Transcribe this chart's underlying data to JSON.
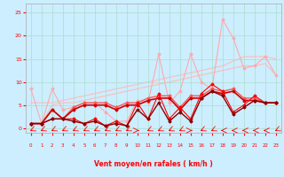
{
  "x": [
    0,
    1,
    2,
    3,
    4,
    5,
    6,
    7,
    8,
    9,
    10,
    11,
    12,
    13,
    14,
    15,
    16,
    17,
    18,
    19,
    20,
    21,
    22,
    23
  ],
  "line_upper1": [
    1.0,
    1.0,
    5.0,
    5.5,
    5.5,
    6.0,
    6.5,
    7.0,
    7.5,
    8.0,
    8.5,
    9.0,
    9.5,
    10.0,
    10.5,
    11.0,
    11.5,
    12.0,
    12.5,
    13.0,
    13.5,
    13.5,
    14.0,
    11.5
  ],
  "line_upper2": [
    5.5,
    5.5,
    5.5,
    6.0,
    6.5,
    7.0,
    7.5,
    8.0,
    8.5,
    9.0,
    9.5,
    10.0,
    10.5,
    11.0,
    11.5,
    12.0,
    12.5,
    13.0,
    13.5,
    14.5,
    15.5,
    15.5,
    15.5,
    15.0
  ],
  "line_spike": [
    8.5,
    1.0,
    8.5,
    4.0,
    4.5,
    5.5,
    5.5,
    3.5,
    1.5,
    1.5,
    6.0,
    5.5,
    16.0,
    5.5,
    8.0,
    16.0,
    10.0,
    8.5,
    23.5,
    19.5,
    13.0,
    13.5,
    15.5,
    11.5
  ],
  "line_mid1": [
    1.0,
    1.0,
    4.0,
    2.0,
    4.5,
    5.5,
    5.5,
    5.5,
    4.5,
    5.5,
    5.5,
    6.5,
    7.0,
    7.0,
    4.5,
    7.0,
    7.0,
    8.5,
    8.0,
    8.5,
    6.5,
    6.5,
    5.5,
    5.5
  ],
  "line_mid2": [
    1.0,
    1.0,
    4.0,
    2.0,
    4.0,
    5.0,
    5.0,
    5.0,
    4.0,
    5.0,
    5.0,
    6.0,
    6.5,
    6.5,
    4.0,
    6.5,
    6.5,
    8.0,
    7.5,
    8.0,
    6.0,
    6.0,
    5.5,
    5.5
  ],
  "line_low1": [
    1.0,
    1.0,
    2.0,
    2.0,
    2.0,
    1.0,
    2.0,
    0.5,
    1.5,
    0.5,
    5.5,
    2.0,
    7.5,
    2.0,
    4.5,
    2.0,
    7.5,
    9.5,
    8.0,
    3.5,
    5.0,
    7.0,
    5.5,
    5.5
  ],
  "line_low2": [
    1.0,
    1.0,
    2.0,
    2.0,
    1.5,
    1.0,
    1.5,
    0.5,
    1.0,
    0.5,
    4.0,
    2.0,
    5.5,
    1.5,
    3.5,
    1.5,
    6.5,
    8.0,
    7.0,
    3.0,
    4.5,
    6.0,
    5.5,
    5.5
  ],
  "color_upper1": "#ffbbbb",
  "color_upper2": "#ffbbbb",
  "color_spike": "#ffaaaa",
  "color_mid1": "#ff5555",
  "color_mid2": "#cc0000",
  "color_low1": "#ff0000",
  "color_low2": "#880000",
  "xlabel": "Vent moyen/en rafales ( km/h )",
  "xlim": [
    -0.5,
    23.5
  ],
  "ylim": [
    -1.0,
    27
  ],
  "yticks": [
    0,
    5,
    10,
    15,
    20,
    25
  ],
  "xticks": [
    0,
    1,
    2,
    3,
    4,
    5,
    6,
    7,
    8,
    9,
    10,
    11,
    12,
    13,
    14,
    15,
    16,
    17,
    18,
    19,
    20,
    21,
    22,
    23
  ],
  "bg_color": "#cceeff",
  "grid_color": "#aaddcc",
  "tick_color": "#ff0000",
  "label_color": "#ff0000",
  "arrow_angles": [
    225,
    225,
    225,
    225,
    225,
    225,
    225,
    225,
    225,
    225,
    90,
    225,
    225,
    225,
    225,
    90,
    225,
    225,
    270,
    270,
    270,
    270,
    270,
    225
  ]
}
